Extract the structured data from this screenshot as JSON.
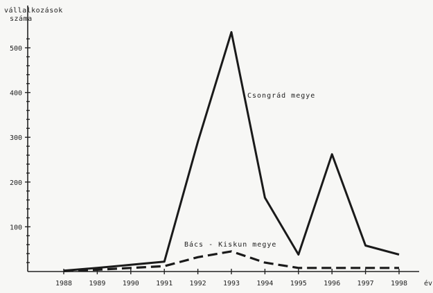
{
  "chart_data": {
    "type": "line",
    "ylabel": "vállalkozások száma",
    "xlabel": "év",
    "x": [
      1988,
      1989,
      1990,
      1991,
      1992,
      1993,
      1994,
      1995,
      1996,
      1997,
      1998
    ],
    "x_tick_labels": [
      "1988",
      "1989",
      "1990",
      "1991",
      "1992",
      "1993",
      "1994",
      "1995",
      "1996",
      "1997",
      "1998"
    ],
    "y_ticks": [
      100,
      200,
      300,
      400,
      500
    ],
    "y_tick_labels": [
      "100",
      "200",
      "300",
      "400",
      "500"
    ],
    "xlim": [
      1988,
      1998
    ],
    "ylim": [
      0,
      540
    ],
    "grid": false,
    "series": [
      {
        "name": "Csongrád megye",
        "style": "solid",
        "color": "#1a1a1a",
        "values": [
          2,
          8,
          15,
          22,
          290,
          535,
          165,
          38,
          262,
          58,
          38
        ]
      },
      {
        "name": "Bács - Kiskun megye",
        "style": "dashed",
        "color": "#1a1a1a",
        "values": [
          1,
          4,
          8,
          12,
          32,
          45,
          20,
          8,
          8,
          8,
          8
        ]
      }
    ]
  }
}
